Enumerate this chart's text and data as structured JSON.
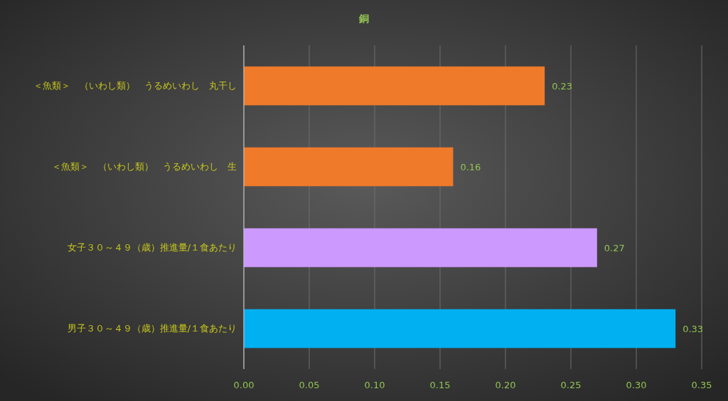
{
  "chart_data": {
    "type": "bar",
    "orientation": "horizontal",
    "title": "銅",
    "categories": [
      "＜魚類＞　（いわし類）　うるめいわし　丸干し",
      "＜魚類＞　（いわし類）　うるめいわし　生",
      "女子３０～４９（歳）推進量/１食あたり",
      "男子３０～４９（歳）推進量/１食あたり"
    ],
    "values": [
      0.23,
      0.16,
      0.27,
      0.33
    ],
    "colors": [
      "#ef7a2a",
      "#ef7a2a",
      "#cc99ff",
      "#00b0f0"
    ],
    "xlim": [
      0,
      0.35
    ],
    "xticks": [
      {
        "value": 0,
        "label": "0.00"
      },
      {
        "value": 0.05,
        "label": "0.05"
      },
      {
        "value": 0.1,
        "label": "0.10"
      },
      {
        "value": 0.15,
        "label": "0.15"
      },
      {
        "value": 0.2,
        "label": "0.20"
      },
      {
        "value": 0.25,
        "label": "0.25"
      },
      {
        "value": 0.3,
        "label": "0.30"
      },
      {
        "value": 0.35,
        "label": "0.35"
      }
    ],
    "grid": "x",
    "data_labels": true
  }
}
